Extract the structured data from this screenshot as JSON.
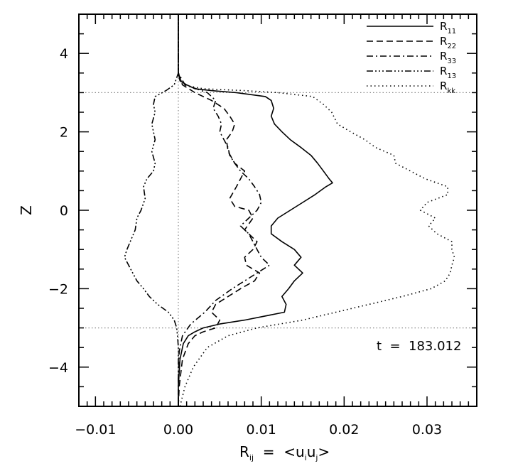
{
  "chart_data": {
    "type": "line",
    "orientation": "vertical-profile",
    "xlabel": {
      "base": "R",
      "sub": "ij",
      "rest": "  =  <u",
      "sub2": "i",
      "mid": "u",
      "sub3": "j",
      "end": ">"
    },
    "ylabel": "Z",
    "xlim": [
      -0.012,
      0.036
    ],
    "ylim": [
      -5,
      5
    ],
    "xticks": [
      -0.01,
      0.0,
      0.01,
      0.02,
      0.03
    ],
    "xtick_labels": [
      "−0.01",
      "0.00",
      "0.01",
      "0.02",
      "0.03"
    ],
    "yticks": [
      -4,
      -2,
      0,
      2,
      4
    ],
    "ytick_labels": [
      "−4",
      "−2",
      "0",
      "2",
      "4"
    ],
    "reference_lines": {
      "horizontal": [
        3,
        -3
      ],
      "vertical": [
        0
      ]
    },
    "legend_position": "top-right",
    "annotation": "t  =  183.012",
    "series": [
      {
        "name": "R",
        "sub": "11",
        "style": "solid",
        "z": [
          5.0,
          3.5,
          3.3,
          3.2,
          3.1,
          3.05,
          3.0,
          2.9,
          2.8,
          2.6,
          2.4,
          2.2,
          2.0,
          1.8,
          1.6,
          1.4,
          1.2,
          1.0,
          0.8,
          0.7,
          0.6,
          0.4,
          0.2,
          0.0,
          -0.2,
          -0.4,
          -0.6,
          -0.8,
          -1.0,
          -1.2,
          -1.4,
          -1.6,
          -1.8,
          -2.0,
          -2.2,
          -2.4,
          -2.6,
          -2.8,
          -2.9,
          -3.0,
          -3.1,
          -3.2,
          -3.4,
          -3.8,
          -4.5,
          -5.0
        ],
        "x": [
          0.0,
          0.0,
          0.0002,
          0.001,
          0.002,
          0.004,
          0.007,
          0.0105,
          0.0112,
          0.0115,
          0.0112,
          0.0116,
          0.0125,
          0.0135,
          0.0148,
          0.016,
          0.0168,
          0.0175,
          0.0182,
          0.0186,
          0.0178,
          0.0165,
          0.015,
          0.0135,
          0.012,
          0.0112,
          0.0112,
          0.0125,
          0.014,
          0.0148,
          0.014,
          0.015,
          0.014,
          0.0133,
          0.0125,
          0.013,
          0.0128,
          0.008,
          0.005,
          0.003,
          0.002,
          0.0012,
          0.0006,
          0.0002,
          0.0,
          0.0
        ]
      },
      {
        "name": "R",
        "sub": "22",
        "style": "dashed",
        "z": [
          5.0,
          3.5,
          3.2,
          3.0,
          2.8,
          2.6,
          2.4,
          2.2,
          2.0,
          1.8,
          1.5,
          1.2,
          1.0,
          0.6,
          0.3,
          0.1,
          0.0,
          -0.2,
          -0.5,
          -0.8,
          -1.0,
          -1.2,
          -1.4,
          -1.6,
          -1.8,
          -2.0,
          -2.2,
          -2.4,
          -2.6,
          -2.8,
          -3.0,
          -3.1,
          -3.2,
          -3.4,
          -3.8,
          -4.5,
          -5.0
        ],
        "x": [
          0.0,
          0.0,
          0.0005,
          0.002,
          0.004,
          0.0055,
          0.0062,
          0.0068,
          0.0065,
          0.0058,
          0.006,
          0.0068,
          0.008,
          0.007,
          0.0062,
          0.0068,
          0.0085,
          0.009,
          0.008,
          0.0095,
          0.009,
          0.008,
          0.0082,
          0.0098,
          0.0092,
          0.0075,
          0.006,
          0.0045,
          0.004,
          0.005,
          0.0045,
          0.003,
          0.002,
          0.0012,
          0.0005,
          0.0001,
          0.0
        ]
      },
      {
        "name": "R",
        "sub": "33",
        "style": "dash-dot",
        "z": [
          5.0,
          3.5,
          3.2,
          3.0,
          2.8,
          2.6,
          2.4,
          2.2,
          2.0,
          1.8,
          1.6,
          1.4,
          1.2,
          1.0,
          0.8,
          0.6,
          0.4,
          0.2,
          0.0,
          -0.2,
          -0.4,
          -0.6,
          -0.8,
          -1.0,
          -1.2,
          -1.4,
          -1.6,
          -1.8,
          -2.0,
          -2.3,
          -2.6,
          -2.9,
          -3.2,
          -3.6,
          -4.2,
          -5.0
        ],
        "x": [
          0.0,
          0.0,
          0.0008,
          0.0035,
          0.0045,
          0.0042,
          0.0048,
          0.0052,
          0.005,
          0.0055,
          0.006,
          0.0062,
          0.0068,
          0.0075,
          0.0085,
          0.0092,
          0.0098,
          0.01,
          0.0095,
          0.0085,
          0.0075,
          0.0085,
          0.009,
          0.0095,
          0.01,
          0.011,
          0.0095,
          0.008,
          0.0065,
          0.0045,
          0.0032,
          0.0015,
          0.0005,
          0.0001,
          0.0,
          0.0
        ]
      },
      {
        "name": "R",
        "sub": "13",
        "style": "dash-dot-dot",
        "z": [
          5.0,
          3.5,
          3.2,
          3.05,
          2.9,
          2.7,
          2.5,
          2.2,
          2.0,
          1.8,
          1.5,
          1.2,
          1.0,
          0.8,
          0.6,
          0.3,
          0.0,
          -0.2,
          -0.5,
          -0.8,
          -1.0,
          -1.2,
          -1.4,
          -1.6,
          -1.8,
          -2.0,
          -2.2,
          -2.4,
          -2.6,
          -2.8,
          -3.0,
          -3.2,
          -3.5,
          -4.0,
          -5.0
        ],
        "x": [
          0.0,
          0.0,
          -0.0005,
          -0.0015,
          -0.0028,
          -0.003,
          -0.0028,
          -0.0032,
          -0.003,
          -0.0028,
          -0.0032,
          -0.0028,
          -0.003,
          -0.0038,
          -0.0042,
          -0.004,
          -0.0045,
          -0.005,
          -0.0052,
          -0.0058,
          -0.0062,
          -0.0065,
          -0.006,
          -0.0055,
          -0.005,
          -0.0042,
          -0.0035,
          -0.0025,
          -0.0012,
          -0.0005,
          -0.0002,
          -0.0001,
          0.0,
          0.0,
          0.0
        ]
      },
      {
        "name": "R",
        "sub": "kk",
        "style": "dotted",
        "z": [
          5.0,
          3.5,
          3.2,
          3.1,
          3.05,
          3.0,
          2.9,
          2.7,
          2.5,
          2.2,
          2.0,
          1.8,
          1.6,
          1.4,
          1.2,
          1.0,
          0.8,
          0.6,
          0.4,
          0.2,
          0.0,
          -0.2,
          -0.4,
          -0.6,
          -0.8,
          -1.0,
          -1.2,
          -1.4,
          -1.6,
          -1.8,
          -2.0,
          -2.2,
          -2.4,
          -2.6,
          -2.8,
          -3.0,
          -3.2,
          -3.5,
          -4.0,
          -4.5,
          -5.0
        ],
        "x": [
          0.0,
          0.0,
          0.0005,
          0.003,
          0.008,
          0.012,
          0.0162,
          0.0175,
          0.0185,
          0.0192,
          0.0208,
          0.0225,
          0.0238,
          0.026,
          0.0262,
          0.028,
          0.0298,
          0.0325,
          0.0325,
          0.03,
          0.0292,
          0.031,
          0.0302,
          0.0312,
          0.033,
          0.033,
          0.0333,
          0.033,
          0.0328,
          0.0322,
          0.0305,
          0.027,
          0.023,
          0.019,
          0.015,
          0.0095,
          0.006,
          0.0035,
          0.0018,
          0.0008,
          0.0002
        ]
      }
    ]
  }
}
